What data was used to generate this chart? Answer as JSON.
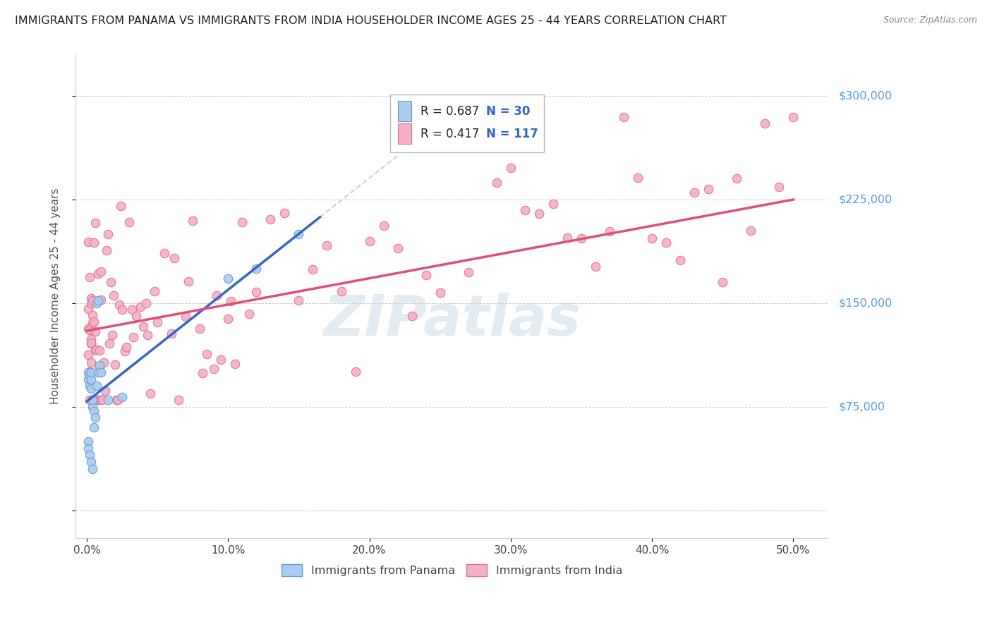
{
  "title": "IMMIGRANTS FROM PANAMA VS IMMIGRANTS FROM INDIA HOUSEHOLDER INCOME AGES 25 - 44 YEARS CORRELATION CHART",
  "source": "Source: ZipAtlas.com",
  "ylabel": "Householder Income Ages 25 - 44 years",
  "panama_color": "#aaccf0",
  "panama_edge": "#6699cc",
  "india_color": "#f5b0c5",
  "india_edge": "#e07090",
  "panama_line_color": "#3366cc",
  "india_line_color": "#e05070",
  "dashed_line_color": "#b8c8d8",
  "background_color": "#ffffff",
  "grid_color": "#cccccc",
  "title_fontsize": 11.5,
  "axis_label_fontsize": 11,
  "tick_fontsize": 11,
  "marker_size": 9,
  "watermark": "ZIPatlas",
  "legend_label1": "Immigrants from Panama",
  "legend_label2": "Immigrants from India",
  "R1": "0.687",
  "N1": "30",
  "R2": "0.417",
  "N2": "117"
}
